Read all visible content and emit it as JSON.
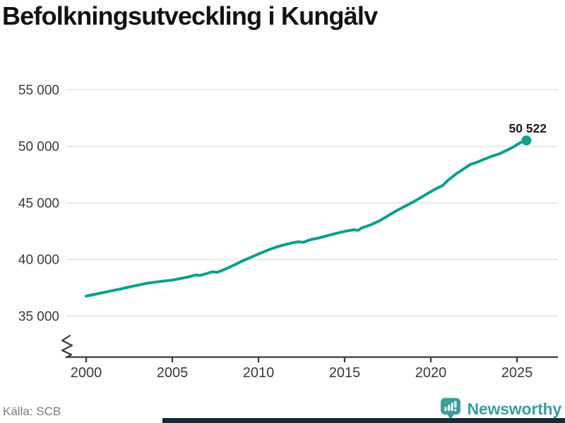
{
  "header": {
    "title": "Befolkningsutveckling i Kungälv"
  },
  "footer": {
    "source": "Källa: SCB",
    "brand": "Newsworthy"
  },
  "colors": {
    "line": "#0d9e8d",
    "brand": "#37a09a",
    "grid": "#e3e3e3",
    "axis": "#3a3a3a",
    "title": "#121212",
    "tick_label": "#3a3a3a",
    "source_text": "#7a7a82",
    "end_label": "#1a1a1a",
    "bottom_bar": "#1a2735",
    "background": "#ffffff"
  },
  "chart_data": {
    "type": "line",
    "title": "Befolkningsutveckling i Kungälv",
    "grid": "horizontal",
    "y_axis_break": true,
    "legend": "none",
    "xlim": [
      1999.6,
      2027.4
    ],
    "ylim": [
      35000,
      55000
    ],
    "x_ticks": [
      2000,
      2005,
      2010,
      2015,
      2020,
      2025
    ],
    "x_tick_labels": [
      "2000",
      "2005",
      "2010",
      "2015",
      "2020",
      "2025"
    ],
    "y_ticks": [
      35000,
      40000,
      45000,
      50000,
      55000
    ],
    "y_tick_labels": [
      "35 000",
      "40 000",
      "45 000",
      "50 000",
      "55 000"
    ],
    "end_label": "50 522",
    "end_value": 50522,
    "series": [
      {
        "points": [
          [
            2000,
            36770
          ],
          [
            2000.5,
            36920
          ],
          [
            2001,
            37080
          ],
          [
            2001.5,
            37240
          ],
          [
            2002,
            37390
          ],
          [
            2002.5,
            37570
          ],
          [
            2003,
            37730
          ],
          [
            2003.5,
            37890
          ],
          [
            2004,
            38000
          ],
          [
            2004.5,
            38090
          ],
          [
            2005,
            38180
          ],
          [
            2005.5,
            38330
          ],
          [
            2006,
            38480
          ],
          [
            2006.35,
            38630
          ],
          [
            2006.6,
            38590
          ],
          [
            2007,
            38760
          ],
          [
            2007.3,
            38910
          ],
          [
            2007.6,
            38870
          ],
          [
            2008,
            39100
          ],
          [
            2008.5,
            39450
          ],
          [
            2009,
            39820
          ],
          [
            2009.5,
            40150
          ],
          [
            2010,
            40480
          ],
          [
            2010.5,
            40800
          ],
          [
            2011,
            41080
          ],
          [
            2011.5,
            41300
          ],
          [
            2012,
            41480
          ],
          [
            2012.3,
            41560
          ],
          [
            2012.6,
            41510
          ],
          [
            2013,
            41750
          ],
          [
            2013.5,
            41900
          ],
          [
            2014,
            42100
          ],
          [
            2014.5,
            42300
          ],
          [
            2015,
            42480
          ],
          [
            2015.5,
            42620
          ],
          [
            2015.8,
            42580
          ],
          [
            2016,
            42800
          ],
          [
            2016.5,
            43050
          ],
          [
            2017,
            43400
          ],
          [
            2017.5,
            43850
          ],
          [
            2018,
            44300
          ],
          [
            2018.5,
            44700
          ],
          [
            2019,
            45100
          ],
          [
            2019.5,
            45550
          ],
          [
            2020,
            46000
          ],
          [
            2020.3,
            46250
          ],
          [
            2020.7,
            46550
          ],
          [
            2021,
            47000
          ],
          [
            2021.5,
            47600
          ],
          [
            2022,
            48100
          ],
          [
            2022.3,
            48400
          ],
          [
            2022.7,
            48600
          ],
          [
            2023,
            48800
          ],
          [
            2023.5,
            49100
          ],
          [
            2024,
            49350
          ],
          [
            2024.4,
            49650
          ],
          [
            2024.8,
            49950
          ],
          [
            2025,
            50150
          ],
          [
            2025.3,
            50400
          ],
          [
            2025.55,
            50522
          ]
        ]
      }
    ]
  }
}
